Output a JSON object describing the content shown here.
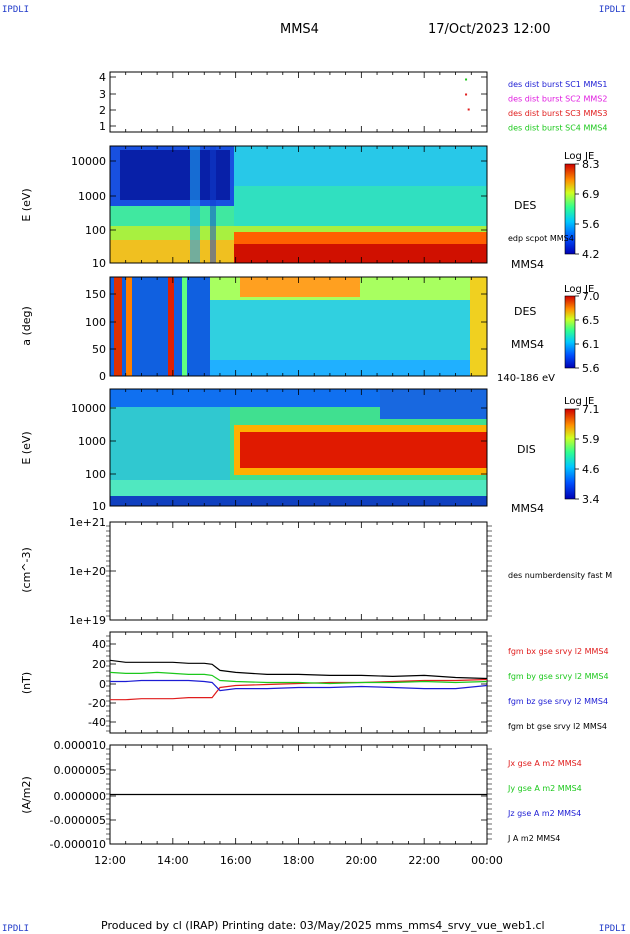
{
  "corner_labels": {
    "top_left": "IPDLI",
    "top_right": "IPDLI",
    "bottom_left": "IPDLI",
    "bottom_right": "IPDLI"
  },
  "header": {
    "spacecraft": "MMS4",
    "date": "17/Oct/2023 12:00"
  },
  "footer": {
    "text": "Produced by cl (IRAP)   Printing date: 03/May/2025   mms_mms4_srvy_vue_web1.cl"
  },
  "time_axis": {
    "ticks": [
      "12:00",
      "14:00",
      "16:00",
      "18:00",
      "20:00",
      "22:00",
      "00:00"
    ]
  },
  "colors": {
    "blue": "#1c1cd4",
    "magenta": "#e01ce0",
    "red": "#e01c1c",
    "green": "#1cc81c",
    "black": "#000000"
  },
  "panels": {
    "burst": {
      "yticks": [
        "4",
        "3",
        "2",
        "1"
      ],
      "legend": [
        {
          "text": "des dist burst SC1 MMS1",
          "color": "#1c1cd4"
        },
        {
          "text": "des dist burst SC2 MMS2",
          "color": "#e01ce0"
        },
        {
          "text": "des dist burst SC3 MMS3",
          "color": "#e01c1c"
        },
        {
          "text": "des dist burst SC4 MMS4",
          "color": "#1cc81c"
        }
      ]
    },
    "des_energy": {
      "ylabel": "E (eV)",
      "yticks": [
        "10000",
        "1000",
        "100",
        "10"
      ],
      "label": "DES",
      "sublabel": "edp scpot MMS4",
      "sc": "MMS4",
      "cbar_title": "Log JE",
      "cbar_ticks": [
        "8.3",
        "6.9",
        "5.6",
        "4.2"
      ]
    },
    "des_pitch": {
      "ylabel": "a (deg)",
      "yticks": [
        "150",
        "100",
        "50",
        "0"
      ],
      "label": "DES",
      "sc": "MMS4",
      "energy_range": "140-186 eV",
      "cbar_title": "Log JE",
      "cbar_ticks": [
        "7.0",
        "6.5",
        "6.1",
        "5.6"
      ]
    },
    "dis_energy": {
      "ylabel": "E (eV)",
      "yticks": [
        "10000",
        "1000",
        "100",
        "10"
      ],
      "label": "DIS",
      "sc": "MMS4",
      "cbar_title": "Log JE",
      "cbar_ticks": [
        "7.1",
        "5.9",
        "4.6",
        "3.4"
      ]
    },
    "density": {
      "ylabel": "(cm^-3)",
      "yticks": [
        "1e+21",
        "1e+20",
        "1e+19"
      ],
      "legend": "des numberdensity fast M"
    },
    "bfield": {
      "ylabel": "(nT)",
      "yticks": [
        "40",
        "20",
        "0",
        "-20",
        "-40"
      ],
      "legend": [
        {
          "text": "fgm bx gse srvy l2 MMS4",
          "color": "#e01c1c"
        },
        {
          "text": "fgm by gse srvy l2 MMS4",
          "color": "#1cc81c"
        },
        {
          "text": "fgm bz gse srvy l2 MMS4",
          "color": "#1c1cd4"
        },
        {
          "text": "fgm bt gse srvy l2 MMS4",
          "color": "#000000"
        }
      ]
    },
    "current": {
      "ylabel": "(A/m2)",
      "yticks": [
        "0.000010",
        "0.000005",
        "0.000000",
        "-0.000005",
        "-0.000010"
      ],
      "legend": [
        {
          "text": "Jx gse A m2 MMS4",
          "color": "#e01c1c"
        },
        {
          "text": "Jy gse A m2 MMS4",
          "color": "#1cc81c"
        },
        {
          "text": "Jz gse A m2 MMS4",
          "color": "#1c1cd4"
        },
        {
          "text": "J A m2 MMS4",
          "color": "#000000"
        }
      ]
    }
  },
  "chart_data": [
    {
      "type": "scatter",
      "title": "",
      "series": [
        {
          "name": "des dist burst SC4 MMS4",
          "x": [
            "23:20"
          ],
          "y": [
            4
          ]
        },
        {
          "name": "des dist burst SC3 MMS3",
          "x": [
            "23:20",
            "23:25"
          ],
          "y": [
            3,
            2
          ]
        }
      ],
      "ylim": [
        0.5,
        4.5
      ]
    },
    {
      "type": "heatmap",
      "xlabel": "",
      "ylabel": "E (eV)",
      "xlim": [
        "12:00",
        "00:00"
      ],
      "ylim": [
        10,
        30000
      ],
      "yscale": "log",
      "colorbar": {
        "title": "Log JE",
        "range": [
          4.2,
          8.3
        ]
      }
    },
    {
      "type": "heatmap",
      "xlabel": "",
      "ylabel": "a (deg)",
      "xlim": [
        "12:00",
        "00:00"
      ],
      "ylim": [
        0,
        180
      ],
      "colorbar": {
        "title": "Log JE",
        "range": [
          5.6,
          7.0
        ]
      }
    },
    {
      "type": "heatmap",
      "xlabel": "",
      "ylabel": "E (eV)",
      "xlim": [
        "12:00",
        "00:00"
      ],
      "ylim": [
        10,
        30000
      ],
      "yscale": "log",
      "colorbar": {
        "title": "Log JE",
        "range": [
          3.4,
          7.1
        ]
      }
    },
    {
      "type": "line",
      "ylabel": "(cm^-3)",
      "ylim": [
        1e+19,
        1e+21
      ],
      "yscale": "log",
      "series": [
        {
          "name": "des numberdensity fast M",
          "x": [],
          "y": []
        }
      ]
    },
    {
      "type": "line",
      "ylabel": "(nT)",
      "ylim": [
        -50,
        50
      ],
      "x": [
        "12:00",
        "12:30",
        "13:00",
        "13:30",
        "14:00",
        "14:30",
        "15:00",
        "15:15",
        "15:30",
        "16:00",
        "17:00",
        "18:00",
        "19:00",
        "20:00",
        "21:00",
        "22:00",
        "23:00",
        "00:00"
      ],
      "series": [
        {
          "name": "fgm bx gse srvy l2 MMS4",
          "values": [
            -17,
            -17,
            -16,
            -16,
            -16,
            -15,
            -15,
            -15,
            -5,
            -3,
            -2,
            -1,
            0,
            0,
            1,
            2,
            2,
            3
          ]
        },
        {
          "name": "fgm by gse srvy l2 MMS4",
          "values": [
            10,
            9,
            9,
            10,
            9,
            8,
            8,
            7,
            2,
            1,
            0,
            0,
            -1,
            0,
            0,
            1,
            0,
            1
          ]
        },
        {
          "name": "fgm bz gse srvy l2 MMS4",
          "values": [
            1,
            1,
            2,
            2,
            2,
            2,
            1,
            0,
            -8,
            -6,
            -6,
            -5,
            -5,
            -4,
            -5,
            -6,
            -6,
            -3
          ]
        },
        {
          "name": "fgm bt gse srvy l2 MMS4",
          "values": [
            22,
            20,
            20,
            20,
            20,
            19,
            19,
            18,
            12,
            10,
            8,
            8,
            7,
            7,
            6,
            7,
            5,
            4
          ]
        }
      ]
    },
    {
      "type": "line",
      "ylabel": "(A/m2)",
      "ylim": [
        -1e-05,
        1e-05
      ],
      "x": [
        "12:00",
        "18:00",
        "00:00"
      ],
      "series": [
        {
          "name": "J A m2 MMS4",
          "values": [
            0,
            0,
            0
          ]
        }
      ]
    }
  ]
}
